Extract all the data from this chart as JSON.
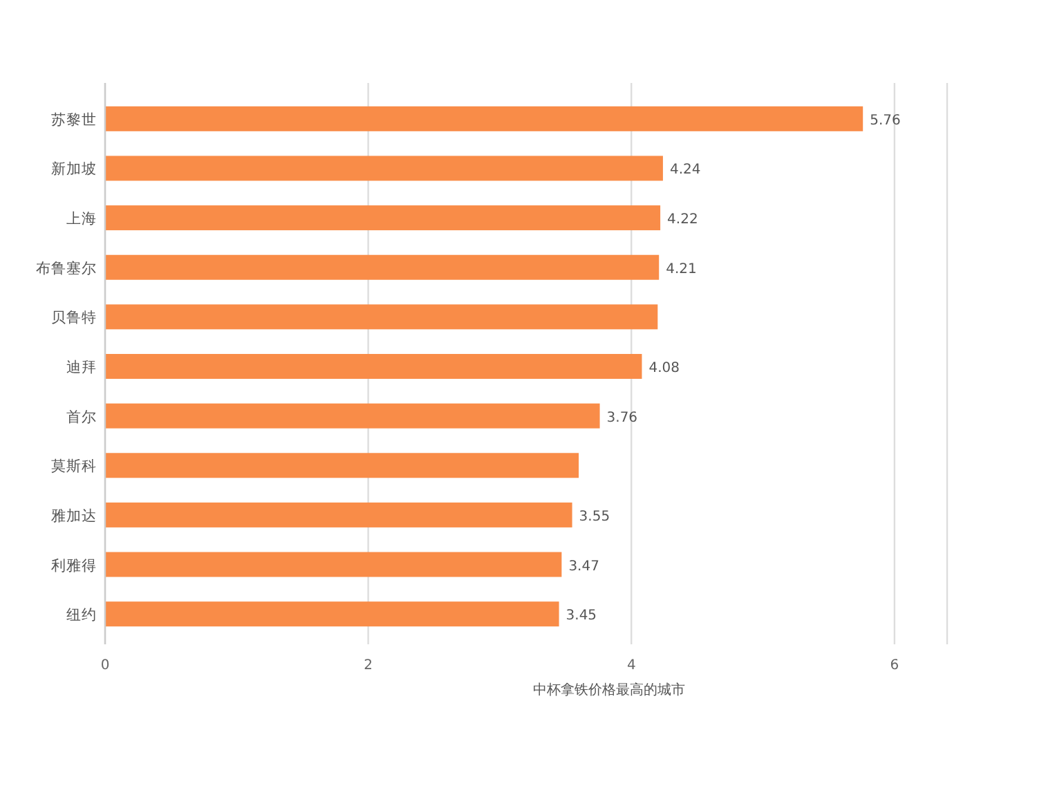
{
  "chart_data": {
    "type": "bar",
    "orientation": "horizontal",
    "xlabel": "中杯拿铁价格最高的城市",
    "categories": [
      "苏黎世",
      "新加坡",
      "上海",
      "布鲁塞尔",
      "贝鲁特",
      "迪拜",
      "首尔",
      "莫斯科",
      "雅加达",
      "利雅得",
      "纽约"
    ],
    "values": [
      5.76,
      4.24,
      4.22,
      4.21,
      4.2,
      4.08,
      3.76,
      3.6,
      3.55,
      3.47,
      3.45
    ],
    "value_labels": [
      "5.76",
      "4.24",
      "4.22",
      "4.21",
      null,
      "4.08",
      "3.76",
      null,
      "3.55",
      "3.47",
      "3.45"
    ],
    "color": "#f98c48",
    "xlim": [
      0,
      6.4
    ],
    "xticks": [
      0,
      2,
      4,
      6
    ],
    "grid": "x"
  }
}
